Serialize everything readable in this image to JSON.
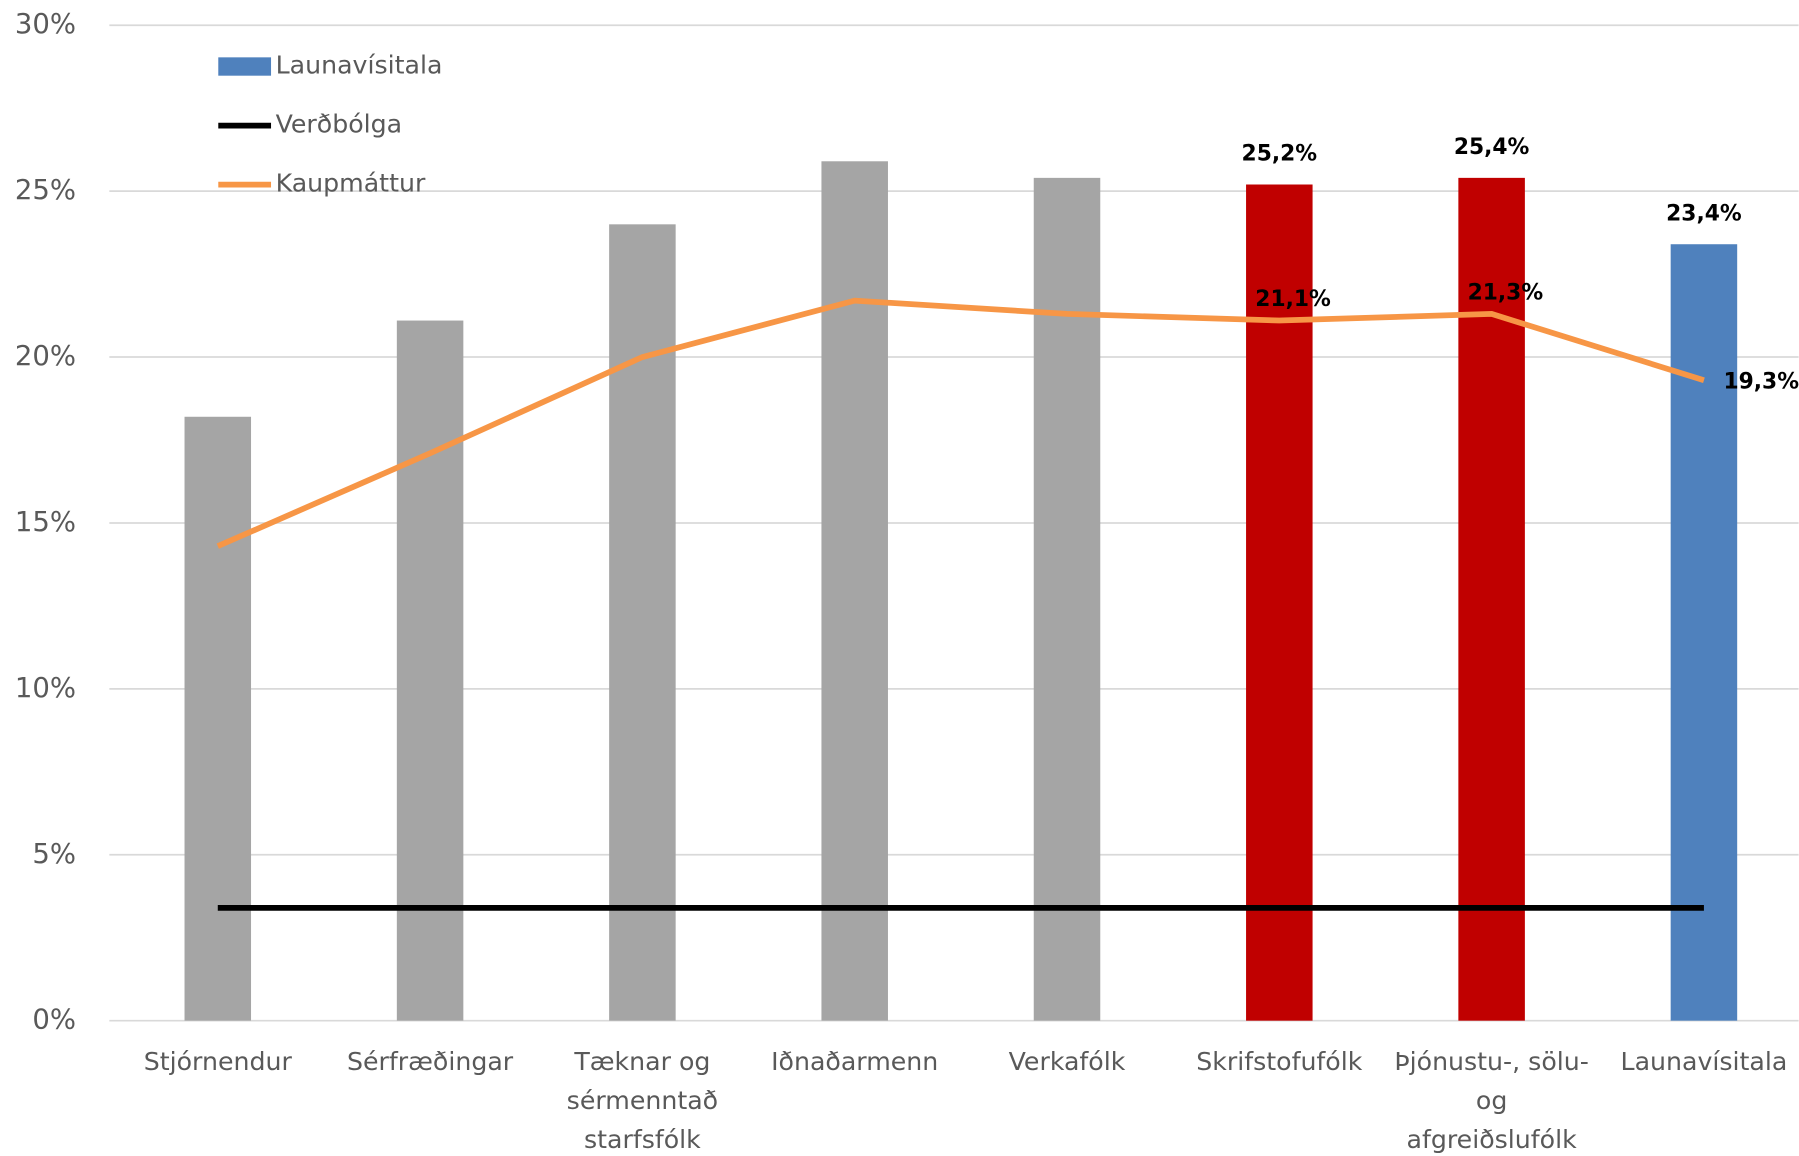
{
  "chart_data": {
    "type": "bar",
    "categories": [
      "Stjórnendur",
      "Sérfræðingar",
      "Tæknar og\nsérmenntað\nstarfsfólk",
      "Iðnaðarmenn",
      "Verkafólk",
      "Skrifstofufólk",
      "Þjónustu-, sölu-\nog\nafgreiðslufólk",
      "Launavísitala"
    ],
    "series": [
      {
        "name": "Launavísitala",
        "type": "bar",
        "color": "#4f81bd",
        "colors": [
          "#a5a5a5",
          "#a5a5a5",
          "#a5a5a5",
          "#a5a5a5",
          "#a5a5a5",
          "#c00000",
          "#c00000",
          "#4f81bd"
        ],
        "values": [
          18.2,
          21.1,
          24.0,
          25.9,
          25.4,
          25.2,
          25.4,
          23.4
        ],
        "value_labels": [
          null,
          null,
          null,
          null,
          null,
          "25,2%",
          "25,4%",
          "23,4%"
        ]
      },
      {
        "name": "Verðbólga",
        "type": "line",
        "color": "#000000",
        "values": [
          3.4,
          3.4,
          3.4,
          3.4,
          3.4,
          3.4,
          3.4,
          3.4
        ]
      },
      {
        "name": "Kaupmáttur",
        "type": "line",
        "color": "#f79646",
        "values": [
          14.3,
          17.1,
          20.0,
          21.7,
          21.3,
          21.1,
          21.3,
          19.3
        ],
        "value_labels": [
          null,
          null,
          null,
          null,
          null,
          "21,1%",
          "21,3%",
          "19,3%"
        ]
      }
    ],
    "ylim": [
      0,
      30
    ],
    "yticks": [
      {
        "value": 0,
        "label": "0%"
      },
      {
        "value": 5,
        "label": "5%"
      },
      {
        "value": 10,
        "label": "10%"
      },
      {
        "value": 15,
        "label": "15%"
      },
      {
        "value": 20,
        "label": "20%"
      },
      {
        "value": 25,
        "label": "25%"
      },
      {
        "value": 30,
        "label": "30%"
      }
    ],
    "grid": true,
    "legend": "top-left"
  }
}
